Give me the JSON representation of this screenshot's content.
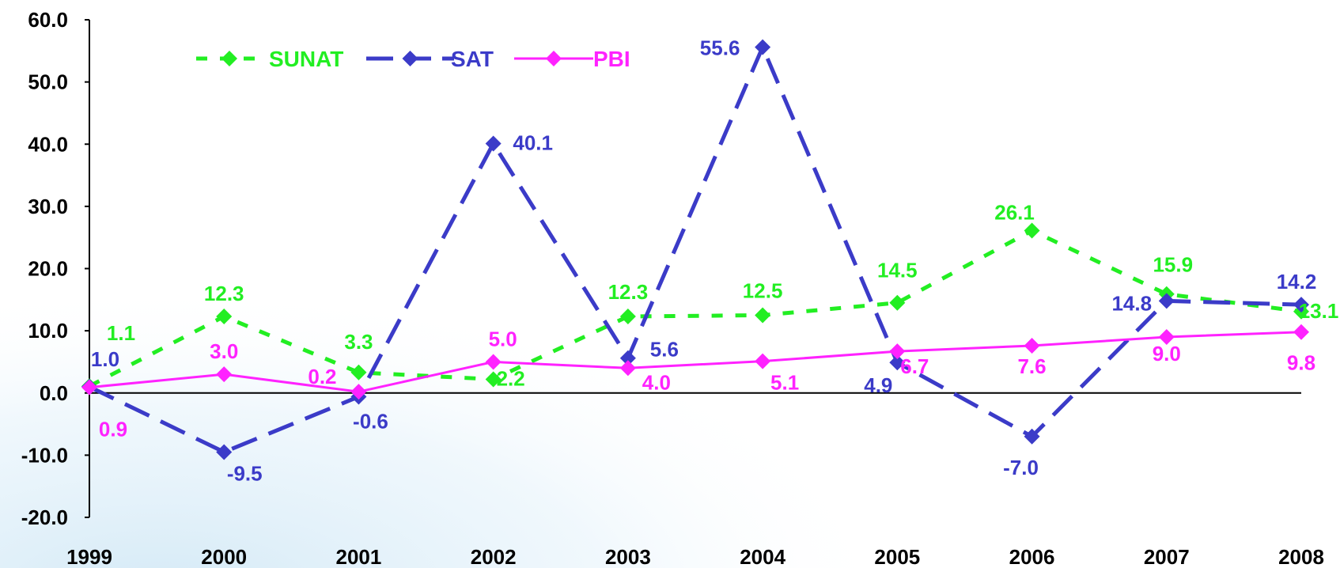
{
  "chart_data": {
    "type": "line",
    "x": [
      "1999",
      "2000",
      "2001",
      "2002",
      "2003",
      "2004",
      "2005",
      "2006",
      "2007",
      "2008"
    ],
    "ylim": [
      -20,
      60
    ],
    "yticks": [
      "60.0",
      "50.0",
      "40.0",
      "30.0",
      "20.0",
      "10.0",
      "0.0",
      "-10.0",
      "-20.0"
    ],
    "grid": false,
    "legend_position": "top-left",
    "series": [
      {
        "name": "SUNAT",
        "color": "#22ee22",
        "line_style": "short-dash",
        "marker": "diamond",
        "values": [
          1.1,
          12.3,
          3.3,
          2.2,
          12.3,
          12.5,
          14.5,
          26.1,
          15.9,
          13.1
        ],
        "labels": [
          "1.1",
          "12.3",
          "3.3",
          "2.2",
          "12.3",
          "12.5",
          "14.5",
          "26.1",
          "15.9",
          "13.1"
        ]
      },
      {
        "name": "SAT",
        "color": "#3b3bc8",
        "line_style": "long-dash",
        "marker": "diamond",
        "values": [
          1.0,
          -9.5,
          -0.6,
          40.1,
          5.6,
          55.6,
          4.9,
          -7.0,
          14.8,
          14.2
        ],
        "labels": [
          "1.0",
          "-9.5",
          "-0.6",
          "40.1",
          "5.6",
          "55.6",
          "4.9",
          "-7.0",
          "14.8",
          "14.2"
        ]
      },
      {
        "name": "PBI",
        "color": "#ff22ff",
        "line_style": "solid",
        "marker": "diamond",
        "values": [
          0.9,
          3.0,
          0.2,
          5.0,
          4.0,
          5.1,
          6.7,
          7.6,
          9.0,
          9.8
        ],
        "labels": [
          "0.9",
          "3.0",
          "0.2",
          "5.0",
          "4.0",
          "5.1",
          "6.7",
          "7.6",
          "9.0",
          "9.8"
        ]
      }
    ]
  }
}
